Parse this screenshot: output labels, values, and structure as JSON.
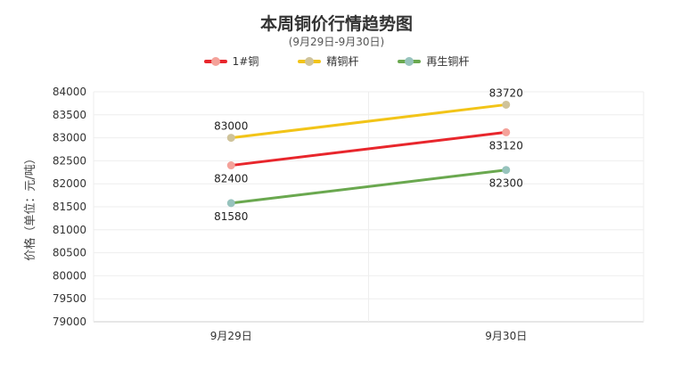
{
  "chart_data": {
    "type": "line",
    "title": "本周铜价行情趋势图",
    "subtitle": "(9月29日-9月30日)",
    "ylabel": "价格（单位：元/吨）",
    "xlabel": "",
    "categories": [
      "9月29日",
      "9月30日"
    ],
    "ylim": [
      79000,
      84000
    ],
    "yticks": [
      79000,
      79500,
      80000,
      80500,
      81000,
      81500,
      82000,
      82500,
      83000,
      83500,
      84000
    ],
    "grid": true,
    "legend_position": "top-center",
    "series": [
      {
        "name": "1#铜",
        "values": [
          82400,
          83120
        ],
        "color": "#e8262c",
        "marker_color": "#f4a29a",
        "label_pos": "below"
      },
      {
        "name": "精铜杆",
        "values": [
          83000,
          83720
        ],
        "color": "#f2c418",
        "marker_color": "#cfc39a",
        "label_pos": "above"
      },
      {
        "name": "再生铜杆",
        "values": [
          81580,
          82300
        ],
        "color": "#6aa84f",
        "marker_color": "#97c3bd",
        "label_pos": "below"
      }
    ]
  }
}
